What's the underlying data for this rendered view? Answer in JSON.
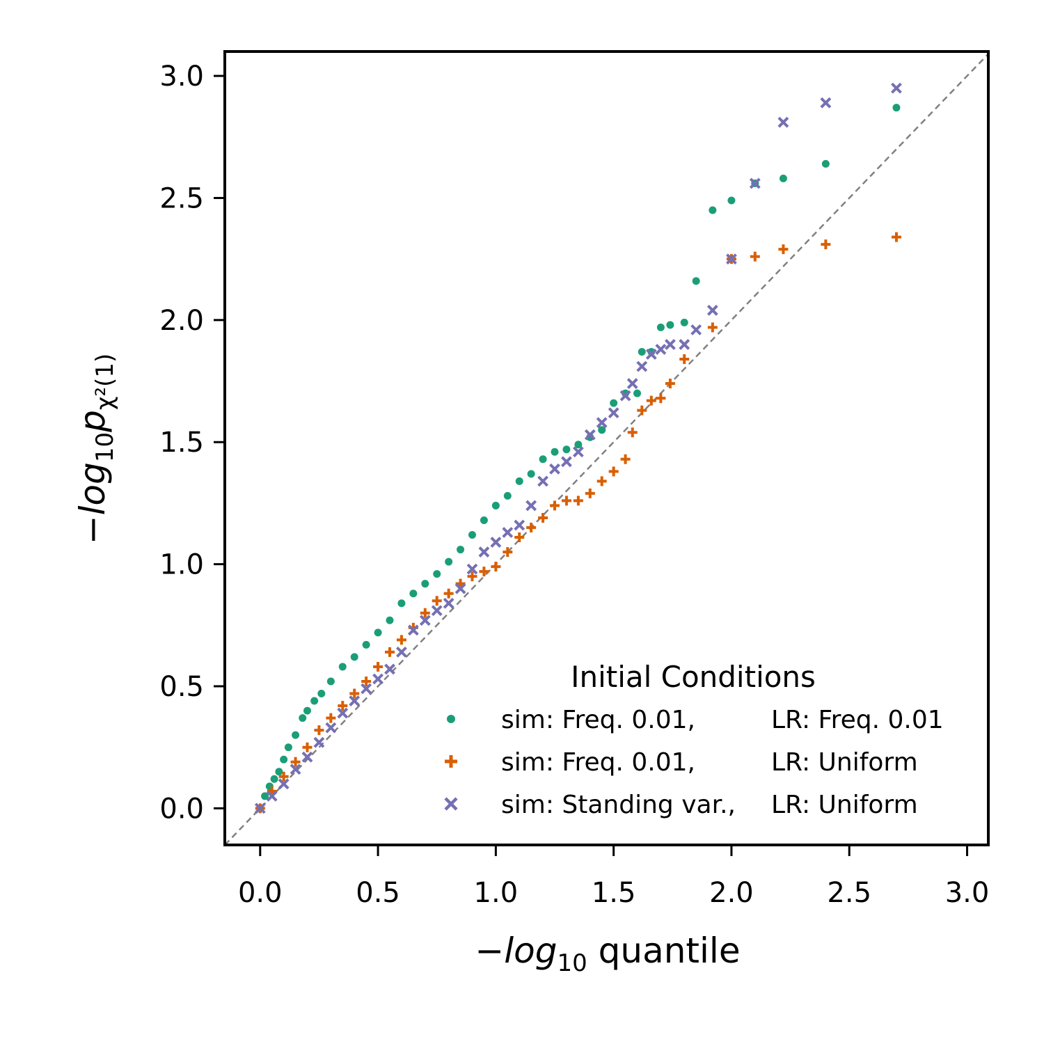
{
  "chart_data": {
    "type": "scatter",
    "xlabel_base": "−log",
    "xlabel_sub": "10",
    "xlabel_rest": " quantile",
    "ylabel_base": "−log",
    "ylabel_sub1": "10",
    "ylabel_p": "p",
    "ylabel_sub2": "χ²(1)",
    "xlim": [
      -0.15,
      3.09
    ],
    "ylim": [
      -0.15,
      3.1
    ],
    "x_ticks": [
      "0.0",
      "0.5",
      "1.0",
      "1.5",
      "2.0",
      "2.5",
      "3.0"
    ],
    "y_ticks": [
      "0.0",
      "0.5",
      "1.0",
      "1.5",
      "2.0",
      "2.5",
      "3.0"
    ],
    "reference_line": "y = x",
    "legend": {
      "title": "Initial Conditions",
      "position": "lower-right",
      "entries": [
        {
          "sim": "sim: Freq. 0.01,",
          "lr": "LR: Freq. 0.01"
        },
        {
          "sim": "sim: Freq. 0.01,",
          "lr": "LR: Uniform"
        },
        {
          "sim": "sim: Standing var.,",
          "lr": "LR: Uniform"
        }
      ]
    },
    "series": [
      {
        "marker": "dot",
        "color": "#1b9e77",
        "points": [
          [
            0.0,
            0.0
          ],
          [
            0.02,
            0.05
          ],
          [
            0.04,
            0.09
          ],
          [
            0.06,
            0.12
          ],
          [
            0.08,
            0.15
          ],
          [
            0.1,
            0.2
          ],
          [
            0.12,
            0.25
          ],
          [
            0.15,
            0.3
          ],
          [
            0.18,
            0.37
          ],
          [
            0.2,
            0.4
          ],
          [
            0.23,
            0.44
          ],
          [
            0.26,
            0.47
          ],
          [
            0.3,
            0.52
          ],
          [
            0.35,
            0.58
          ],
          [
            0.4,
            0.62
          ],
          [
            0.45,
            0.67
          ],
          [
            0.5,
            0.72
          ],
          [
            0.55,
            0.77
          ],
          [
            0.6,
            0.84
          ],
          [
            0.65,
            0.88
          ],
          [
            0.7,
            0.92
          ],
          [
            0.75,
            0.96
          ],
          [
            0.8,
            1.01
          ],
          [
            0.85,
            1.06
          ],
          [
            0.9,
            1.12
          ],
          [
            0.95,
            1.18
          ],
          [
            1.0,
            1.24
          ],
          [
            1.05,
            1.28
          ],
          [
            1.1,
            1.34
          ],
          [
            1.15,
            1.37
          ],
          [
            1.2,
            1.43
          ],
          [
            1.25,
            1.46
          ],
          [
            1.3,
            1.47
          ],
          [
            1.35,
            1.49
          ],
          [
            1.4,
            1.52
          ],
          [
            1.45,
            1.55
          ],
          [
            1.5,
            1.66
          ],
          [
            1.55,
            1.7
          ],
          [
            1.6,
            1.7
          ],
          [
            1.62,
            1.87
          ],
          [
            1.66,
            1.87
          ],
          [
            1.7,
            1.97
          ],
          [
            1.74,
            1.98
          ],
          [
            1.8,
            1.99
          ],
          [
            1.85,
            2.16
          ],
          [
            1.92,
            2.45
          ],
          [
            2.0,
            2.49
          ],
          [
            2.1,
            2.56
          ],
          [
            2.22,
            2.58
          ],
          [
            2.4,
            2.64
          ],
          [
            2.7,
            2.87
          ]
        ]
      },
      {
        "marker": "plus",
        "color": "#d95f02",
        "points": [
          [
            0.0,
            0.0
          ],
          [
            0.05,
            0.07
          ],
          [
            0.1,
            0.13
          ],
          [
            0.15,
            0.19
          ],
          [
            0.2,
            0.25
          ],
          [
            0.25,
            0.32
          ],
          [
            0.3,
            0.37
          ],
          [
            0.35,
            0.42
          ],
          [
            0.4,
            0.47
          ],
          [
            0.45,
            0.52
          ],
          [
            0.5,
            0.58
          ],
          [
            0.55,
            0.64
          ],
          [
            0.6,
            0.69
          ],
          [
            0.65,
            0.74
          ],
          [
            0.7,
            0.8
          ],
          [
            0.75,
            0.85
          ],
          [
            0.8,
            0.88
          ],
          [
            0.85,
            0.92
          ],
          [
            0.9,
            0.95
          ],
          [
            0.95,
            0.97
          ],
          [
            1.0,
            0.99
          ],
          [
            1.05,
            1.05
          ],
          [
            1.1,
            1.11
          ],
          [
            1.15,
            1.15
          ],
          [
            1.2,
            1.19
          ],
          [
            1.25,
            1.24
          ],
          [
            1.3,
            1.26
          ],
          [
            1.35,
            1.26
          ],
          [
            1.4,
            1.29
          ],
          [
            1.45,
            1.34
          ],
          [
            1.5,
            1.38
          ],
          [
            1.55,
            1.43
          ],
          [
            1.58,
            1.54
          ],
          [
            1.62,
            1.63
          ],
          [
            1.66,
            1.67
          ],
          [
            1.7,
            1.68
          ],
          [
            1.74,
            1.74
          ],
          [
            1.8,
            1.84
          ],
          [
            1.92,
            1.97
          ],
          [
            2.0,
            2.25
          ],
          [
            2.1,
            2.26
          ],
          [
            2.22,
            2.29
          ],
          [
            2.4,
            2.31
          ],
          [
            2.7,
            2.34
          ]
        ]
      },
      {
        "marker": "x",
        "color": "#7570b3",
        "points": [
          [
            0.0,
            0.0
          ],
          [
            0.05,
            0.05
          ],
          [
            0.1,
            0.1
          ],
          [
            0.15,
            0.16
          ],
          [
            0.2,
            0.21
          ],
          [
            0.25,
            0.27
          ],
          [
            0.3,
            0.33
          ],
          [
            0.35,
            0.39
          ],
          [
            0.4,
            0.44
          ],
          [
            0.45,
            0.49
          ],
          [
            0.5,
            0.53
          ],
          [
            0.55,
            0.57
          ],
          [
            0.6,
            0.64
          ],
          [
            0.65,
            0.73
          ],
          [
            0.7,
            0.77
          ],
          [
            0.75,
            0.81
          ],
          [
            0.8,
            0.84
          ],
          [
            0.85,
            0.9
          ],
          [
            0.9,
            0.98
          ],
          [
            0.95,
            1.05
          ],
          [
            1.0,
            1.09
          ],
          [
            1.05,
            1.13
          ],
          [
            1.1,
            1.16
          ],
          [
            1.15,
            1.24
          ],
          [
            1.2,
            1.34
          ],
          [
            1.25,
            1.39
          ],
          [
            1.3,
            1.42
          ],
          [
            1.35,
            1.46
          ],
          [
            1.4,
            1.53
          ],
          [
            1.45,
            1.58
          ],
          [
            1.5,
            1.62
          ],
          [
            1.55,
            1.69
          ],
          [
            1.58,
            1.74
          ],
          [
            1.62,
            1.81
          ],
          [
            1.66,
            1.86
          ],
          [
            1.7,
            1.88
          ],
          [
            1.74,
            1.9
          ],
          [
            1.8,
            1.9
          ],
          [
            1.85,
            1.96
          ],
          [
            1.92,
            2.04
          ],
          [
            2.0,
            2.25
          ],
          [
            2.1,
            2.56
          ],
          [
            2.22,
            2.81
          ],
          [
            2.4,
            2.89
          ],
          [
            2.7,
            2.95
          ]
        ]
      }
    ]
  }
}
